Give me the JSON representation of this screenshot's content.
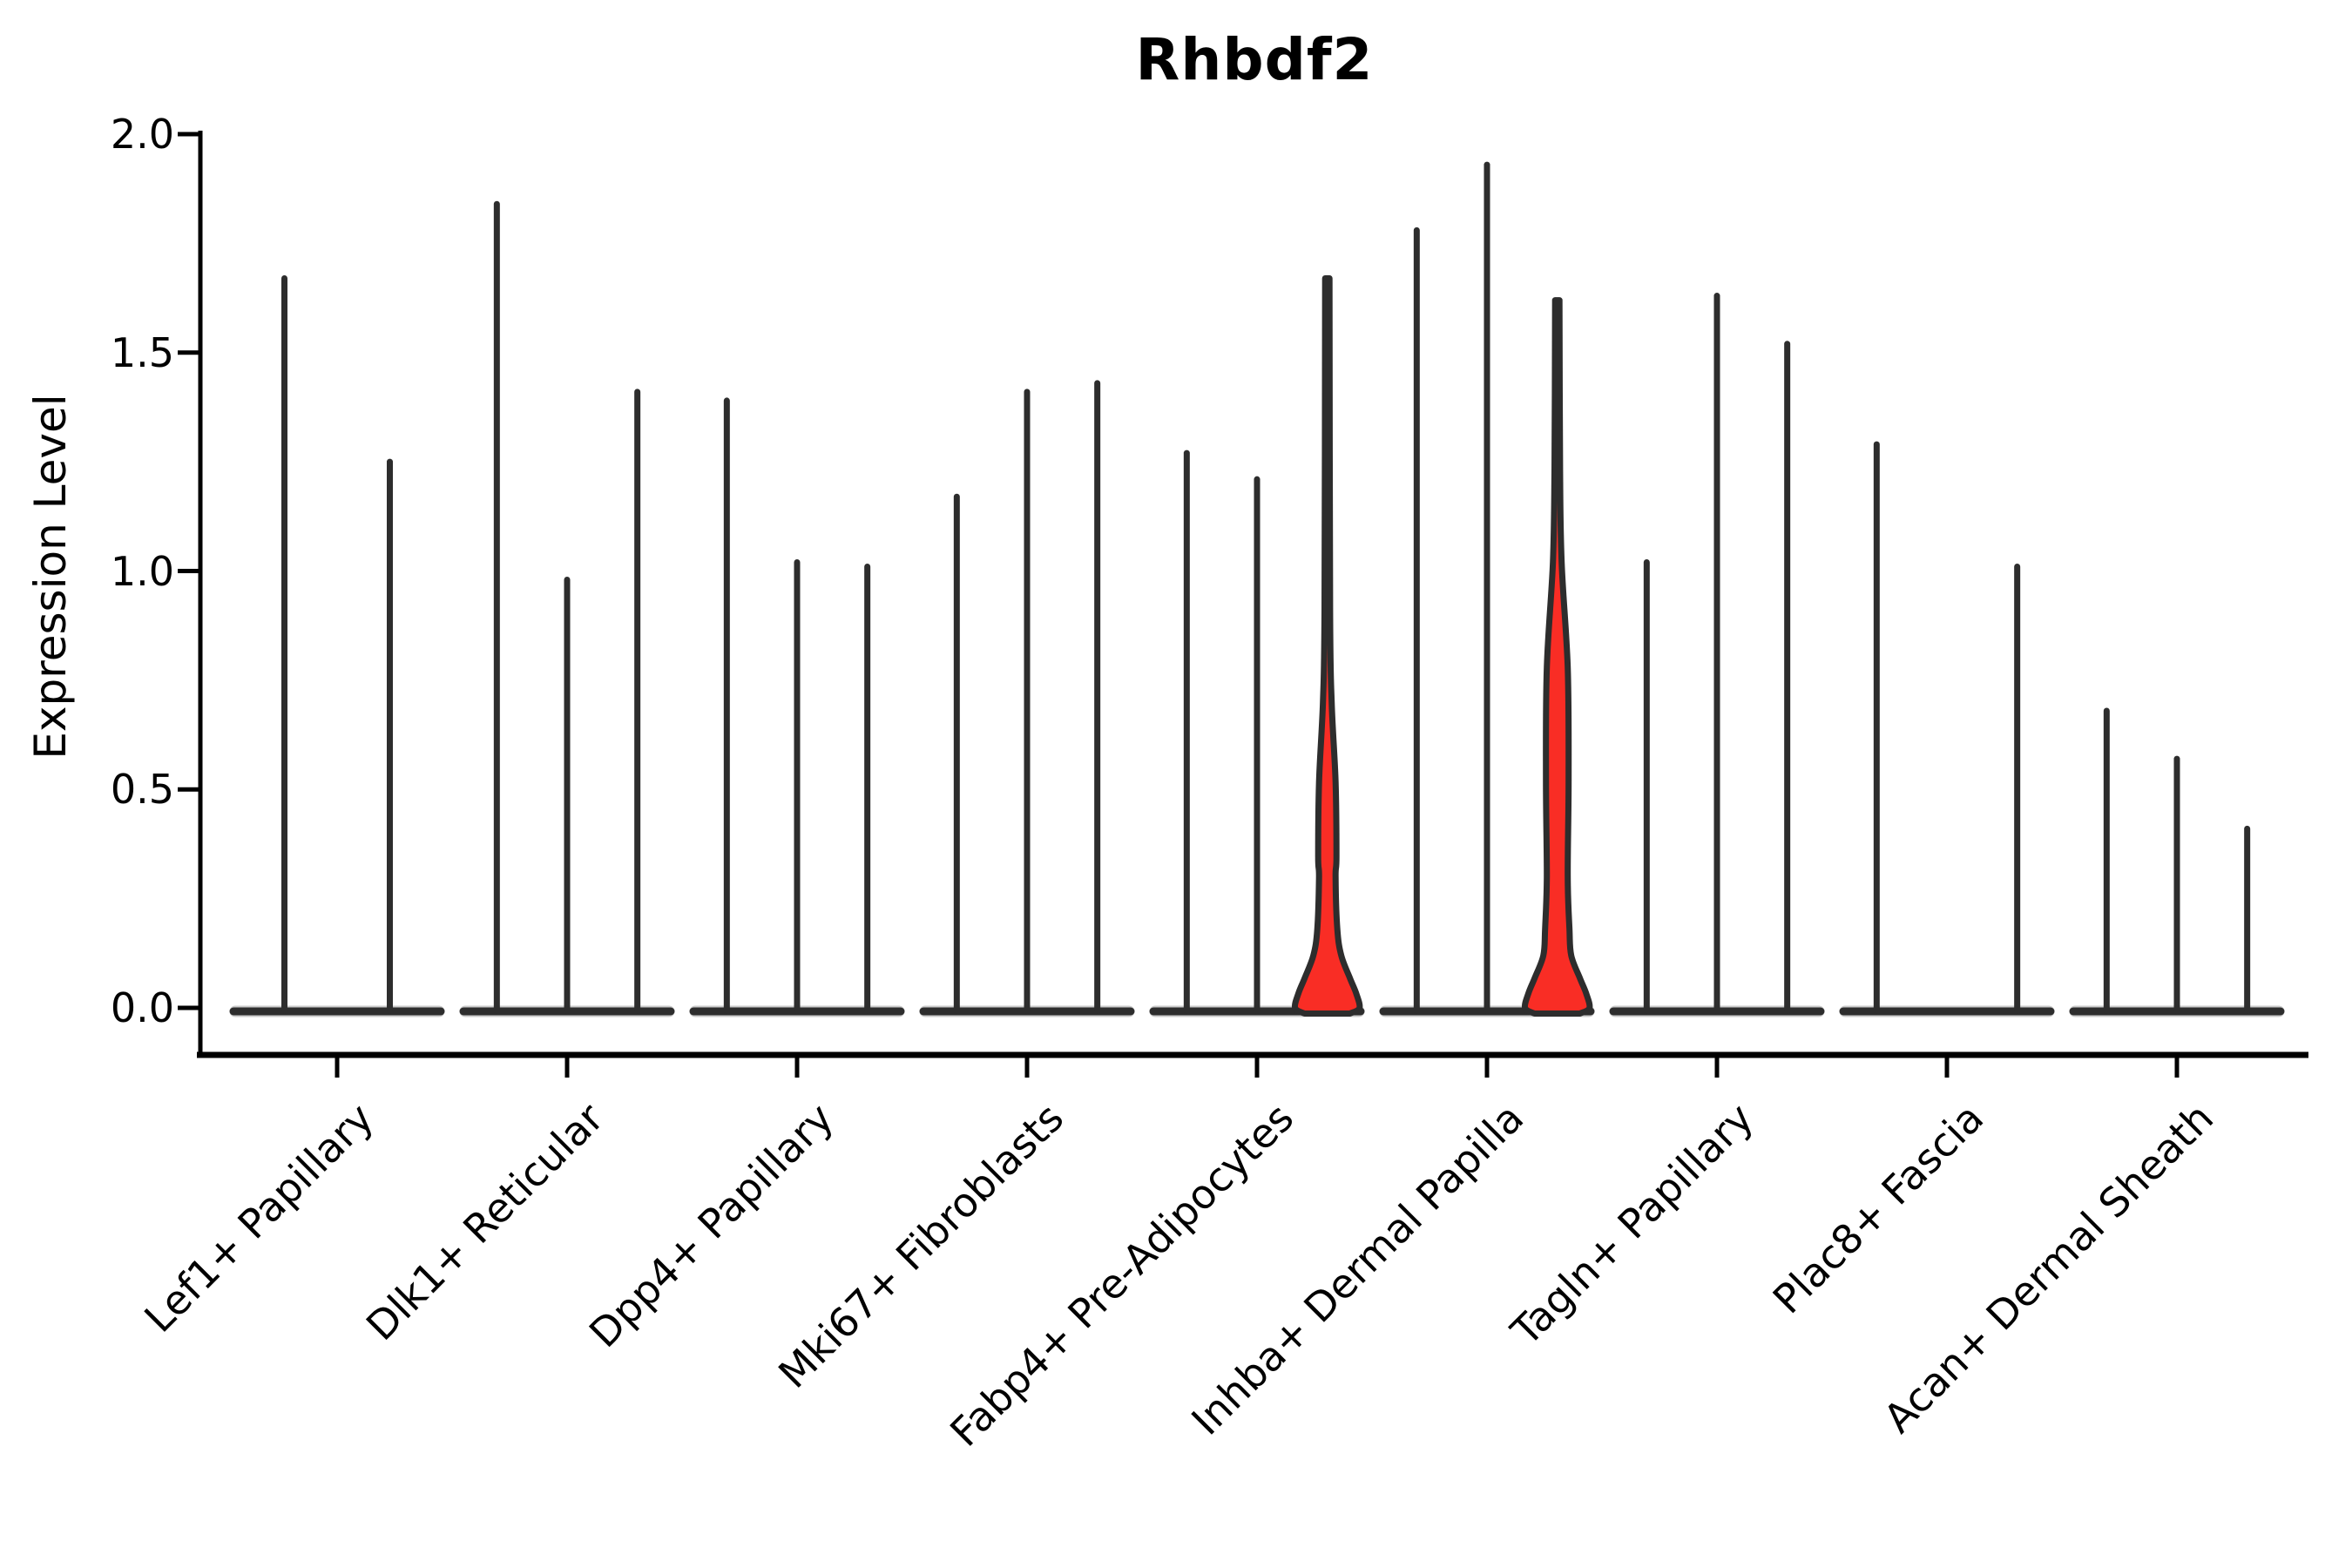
{
  "chart_data": {
    "type": "violin",
    "title": "Rhbdf2",
    "ylabel": "Expression Level",
    "xlabel": "",
    "ylim": [
      0.0,
      2.0
    ],
    "y_ticks": [
      "2.0",
      "1.5",
      "1.0",
      "0.5",
      "0.0"
    ],
    "y_tick_values": [
      2.0,
      1.5,
      1.0,
      0.5,
      0.0
    ],
    "grid": false,
    "legend": null,
    "categories": [
      "Lef1+ Papillary",
      "Dlk1+ Reticular",
      "Dpp4+ Papillary",
      "Mki67+ Fibroblasts",
      "Fabp4+ Pre-Adipocytes",
      "Inhba+ Dermal Papilla",
      "Tagln+ Papillary",
      "Plac8+ Fascia",
      "Acan+ Dermal Sheath"
    ],
    "groups": [
      {
        "category": "Lef1+ Papillary",
        "violins": [
          {
            "max": 1.67
          },
          {
            "max": 1.25
          }
        ]
      },
      {
        "category": "Dlk1+ Reticular",
        "violins": [
          {
            "max": 1.84
          },
          {
            "max": 0.98
          },
          {
            "max": 1.41
          }
        ]
      },
      {
        "category": "Dpp4+ Papillary",
        "violins": [
          {
            "max": 1.39
          },
          {
            "max": 1.02
          },
          {
            "max": 1.01
          }
        ]
      },
      {
        "category": "Mki67+ Fibroblasts",
        "violins": [
          {
            "max": 1.17
          },
          {
            "max": 1.41
          },
          {
            "max": 1.43
          }
        ]
      },
      {
        "category": "Fabp4+ Pre-Adipocytes",
        "violins": [
          {
            "max": 1.27
          },
          {
            "max": 1.21
          },
          {
            "max": 1.67,
            "highlight": true,
            "fill_top": 0.63
          }
        ]
      },
      {
        "category": "Inhba+ Dermal Papilla",
        "violins": [
          {
            "max": 1.78
          },
          {
            "max": 1.93
          },
          {
            "max": 1.62,
            "highlight": true,
            "fill_top": 0.95
          }
        ]
      },
      {
        "category": "Tagln+ Papillary",
        "violins": [
          {
            "max": 1.02
          },
          {
            "max": 1.63
          },
          {
            "max": 1.52
          }
        ]
      },
      {
        "category": "Plac8+ Fascia",
        "violins": [
          {
            "max": 1.29
          },
          {
            "max": 0.0
          },
          {
            "max": 1.01
          }
        ]
      },
      {
        "category": "Acan+ Dermal Sheath",
        "violins": [
          {
            "max": 0.68
          },
          {
            "max": 0.57
          },
          {
            "max": 0.41
          }
        ]
      }
    ],
    "colors": {
      "violin_stroke": "#2d2d2d",
      "highlight_fill": "#f92d25",
      "axis": "#000000",
      "background": "#ffffff"
    }
  }
}
